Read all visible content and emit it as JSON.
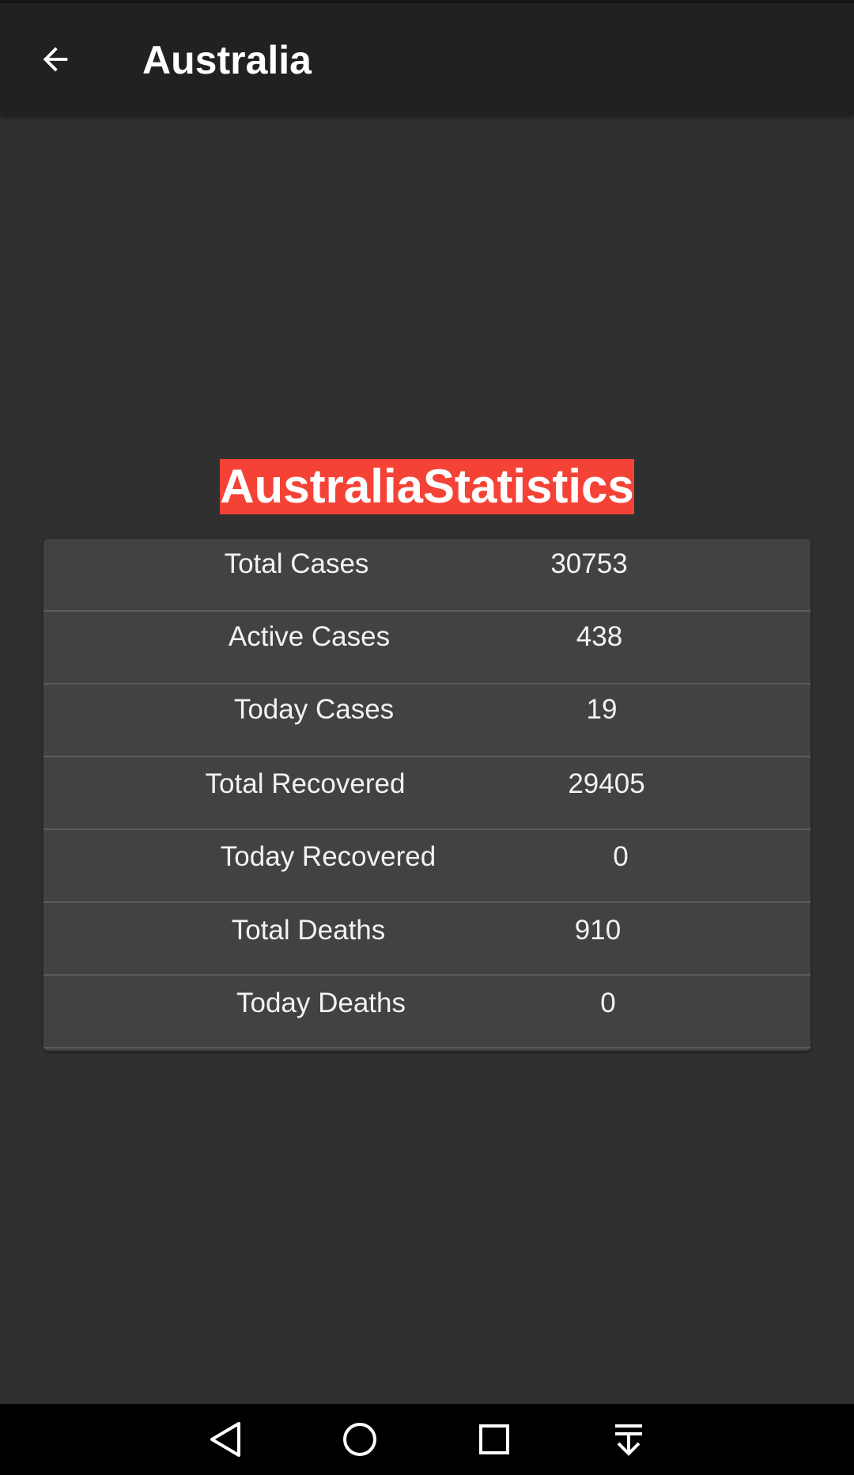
{
  "app_bar": {
    "title": "Australia",
    "back_icon": "arrow-back-icon"
  },
  "heading": "AustraliaStatistics",
  "stats": [
    {
      "label": "Total Cases",
      "value": "30753"
    },
    {
      "label": "Active Cases",
      "value": "438"
    },
    {
      "label": "Today Cases",
      "value": "19"
    },
    {
      "label": "Total Recovered",
      "value": "29405"
    },
    {
      "label": "Today Recovered",
      "value": "0"
    },
    {
      "label": "Total Deaths",
      "value": "910"
    },
    {
      "label": "Today Deaths",
      "value": "0"
    }
  ],
  "nav_bar": {
    "icons": [
      "back-triangle-icon",
      "home-circle-icon",
      "recents-square-icon",
      "notification-pull-icon"
    ]
  },
  "colors": {
    "background": "#303030",
    "app_bar": "#212121",
    "card": "#424242",
    "heading_highlight": "#f44336",
    "text": "#ffffff"
  }
}
